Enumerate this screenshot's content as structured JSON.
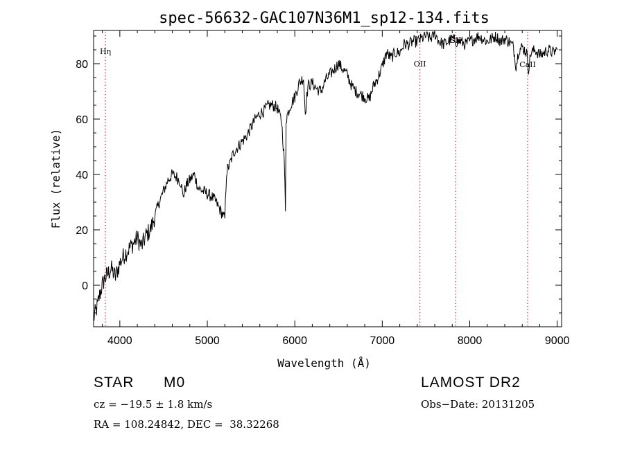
{
  "chart_data": {
    "type": "line",
    "title": "spec-56632-GAC107N36M1_sp12-134.fits",
    "xlabel": "Wavelength (Å)",
    "ylabel": "Flux (relative)",
    "xlim": [
      3700,
      9050
    ],
    "ylim": [
      -15,
      92
    ],
    "xticks": [
      4000,
      5000,
      6000,
      7000,
      8000,
      9000
    ],
    "yticks": [
      0,
      20,
      40,
      60,
      80
    ],
    "series": [
      {
        "x": [
          3700,
          3740,
          3780,
          3820,
          3860,
          3900,
          3950,
          4000,
          4050,
          4100,
          4150,
          4200,
          4250,
          4300,
          4350,
          4400,
          4450,
          4500,
          4550,
          4600,
          4650,
          4700,
          4720,
          4760,
          4800,
          4850,
          4900,
          4950,
          5000,
          5050,
          5100,
          5150,
          5200,
          5220,
          5260,
          5300,
          5350,
          5400,
          5450,
          5500,
          5550,
          5600,
          5650,
          5700,
          5750,
          5800,
          5850,
          5880,
          5893,
          5900,
          5950,
          6000,
          6050,
          6100,
          6120,
          6150,
          6200,
          6250,
          6300,
          6350,
          6400,
          6450,
          6500,
          6550,
          6600,
          6650,
          6700,
          6750,
          6800,
          6850,
          6900,
          6950,
          7000,
          7050,
          7100,
          7150,
          7200,
          7250,
          7300,
          7350,
          7400,
          7450,
          7500,
          7550,
          7600,
          7650,
          7700,
          7750,
          7800,
          7850,
          7900,
          7950,
          8000,
          8050,
          8100,
          8150,
          8200,
          8250,
          8300,
          8350,
          8400,
          8450,
          8500,
          8530,
          8560,
          8600,
          8650,
          8670,
          8700,
          8750,
          8800,
          8850,
          8900,
          8950,
          9000
        ],
        "values": [
          -12,
          -8,
          -2,
          2,
          4,
          6,
          3,
          8,
          11,
          13,
          15,
          17,
          14,
          18,
          20,
          25,
          30,
          34,
          38,
          40,
          39,
          37,
          32,
          36,
          38,
          40,
          35,
          34,
          33,
          32,
          30,
          27,
          24,
          41,
          44,
          48,
          50,
          52,
          54,
          57,
          60,
          62,
          63,
          65,
          65,
          64,
          59,
          45,
          26,
          60,
          65,
          68,
          73,
          75,
          62,
          72,
          73,
          71,
          70,
          74,
          76,
          78,
          80,
          78,
          76,
          72,
          70,
          69,
          68,
          67,
          72,
          75,
          79,
          84,
          82,
          84,
          84,
          87,
          87,
          88,
          88,
          89,
          90,
          89,
          91,
          88,
          87,
          88,
          89,
          88,
          88,
          87,
          88,
          89,
          90,
          89,
          88,
          89,
          90,
          88,
          89,
          88,
          86,
          79,
          85,
          86,
          84,
          78,
          84,
          85,
          83,
          84,
          85,
          84,
          85
        ]
      }
    ],
    "lines": [
      {
        "label": "Hη",
        "x": 3835
      },
      {
        "label": "OII",
        "x": 7430
      },
      {
        "label": "SII",
        "x": 7840
      },
      {
        "label": "CaII",
        "x": 8662
      }
    ]
  },
  "info": {
    "object_class": "STAR",
    "subclass": "M0",
    "survey": "LAMOST DR2",
    "cz": "cz = −19.5 ± 1.8 km/s",
    "obs_date": "Obs−Date: 20131205",
    "coords": "RA = 108.24842, DEC =  38.32268"
  },
  "colors": {
    "spectrum": "#000000",
    "line_marker": "#e4252a",
    "axes": "#000000"
  }
}
